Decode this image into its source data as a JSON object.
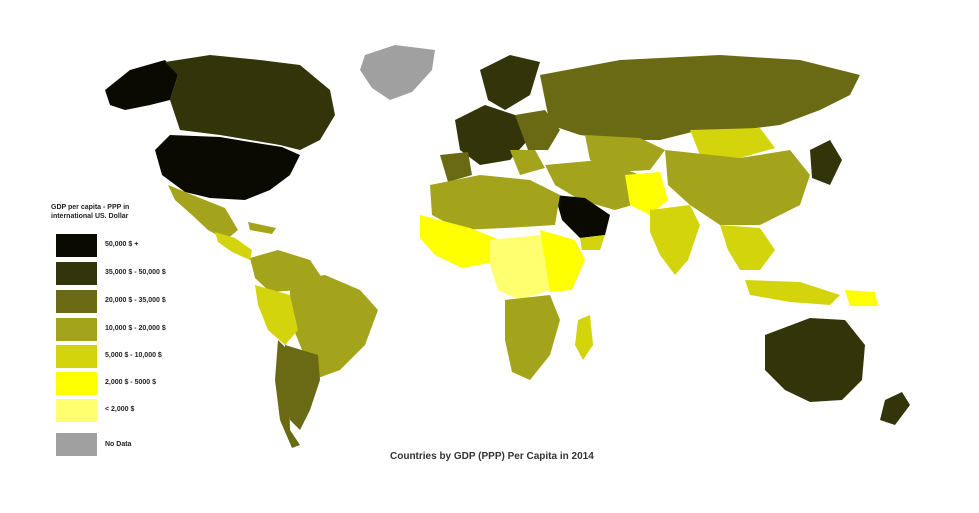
{
  "map": {
    "title": "Countries by GDP (PPP) Per Capita in 2014"
  },
  "legend": {
    "title_line1": "GDP per capita - PPP in",
    "title_line2": "international US. Dollar",
    "items": [
      {
        "label": "50,000 $ +",
        "color": "#0a0a00"
      },
      {
        "label": "35,000 $ - 50,000 $",
        "color": "#34340a"
      },
      {
        "label": "20,000 $ - 35,000 $",
        "color": "#6a6a14"
      },
      {
        "label": "10,000 $ - 20,000 $",
        "color": "#a3a31c"
      },
      {
        "label": "5,000 $ - 10,000 $",
        "color": "#d4d40c"
      },
      {
        "label": "2,000 $ - 5000 $",
        "color": "#ffff00"
      },
      {
        "label": "< 2,000 $",
        "color": "#ffff70"
      },
      {
        "label": "No Data",
        "color": "#a0a0a0"
      }
    ]
  }
}
